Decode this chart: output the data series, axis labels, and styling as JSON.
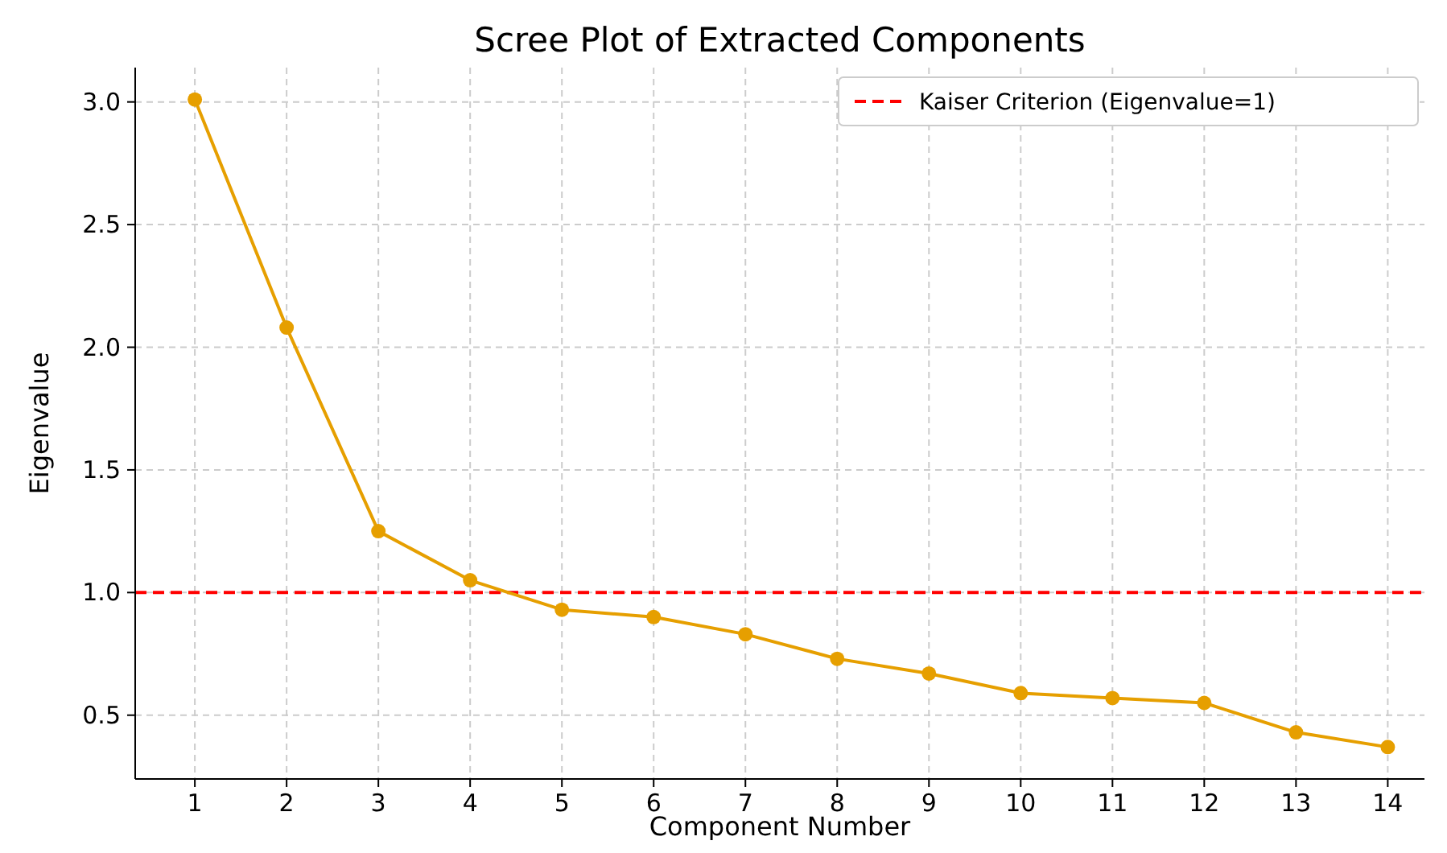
{
  "chart_data": {
    "type": "line",
    "title": "Scree Plot of Extracted Components",
    "xlabel": "Component Number",
    "ylabel": "Eigenvalue",
    "x": [
      1,
      2,
      3,
      4,
      5,
      6,
      7,
      8,
      9,
      10,
      11,
      12,
      13,
      14
    ],
    "series": [
      {
        "color": "#e69f00",
        "values": [
          3.01,
          2.08,
          1.25,
          1.05,
          0.93,
          0.9,
          0.83,
          0.73,
          0.67,
          0.59,
          0.57,
          0.55,
          0.43,
          0.37
        ]
      }
    ],
    "xlim": [
      0.35,
      14.4
    ],
    "xticks": [
      1,
      2,
      3,
      4,
      5,
      6,
      7,
      8,
      9,
      10,
      11,
      12,
      13,
      14
    ],
    "ylim": [
      0.24,
      3.14
    ],
    "yticks": [
      {
        "value": 0.5,
        "label": "0.5"
      },
      {
        "value": 1,
        "label": "1.0"
      },
      {
        "value": 1.5,
        "label": "1.5"
      },
      {
        "value": 2,
        "label": "2.0"
      },
      {
        "value": 2.5,
        "label": "2.5"
      },
      {
        "value": 3,
        "label": "3.0"
      }
    ],
    "ref_lines": [
      {
        "axis": "y",
        "value": 1,
        "label": "Kaiser Criterion (Eigenvalue=1)",
        "color": "#ff0000",
        "line_style": "dashed"
      }
    ],
    "grid": true,
    "legend": "top right",
    "marker": "circle",
    "line_style": "solid"
  }
}
